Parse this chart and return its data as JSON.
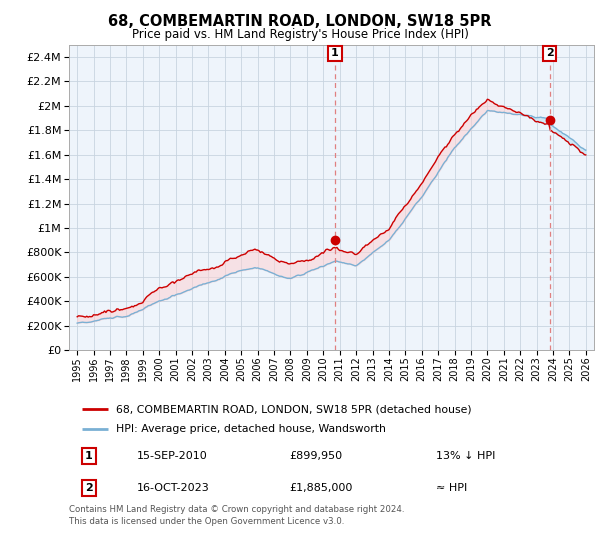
{
  "title": "68, COMBEMARTIN ROAD, LONDON, SW18 5PR",
  "subtitle": "Price paid vs. HM Land Registry's House Price Index (HPI)",
  "legend_line1": "68, COMBEMARTIN ROAD, LONDON, SW18 5PR (detached house)",
  "legend_line2": "HPI: Average price, detached house, Wandsworth",
  "annotation1_label": "1",
  "annotation1_date": "15-SEP-2010",
  "annotation1_price": "£899,950",
  "annotation1_hpi": "13% ↓ HPI",
  "annotation2_label": "2",
  "annotation2_date": "16-OCT-2023",
  "annotation2_price": "£1,885,000",
  "annotation2_hpi": "≈ HPI",
  "footer": "Contains HM Land Registry data © Crown copyright and database right 2024.\nThis data is licensed under the Open Government Licence v3.0.",
  "hpi_color": "#7ab0d4",
  "hpi_fill_color": "#d0e8f5",
  "price_color": "#cc0000",
  "annotation_vline_color": "#e08080",
  "ylim_min": 0,
  "ylim_max": 2500000,
  "x_start_year": 1995,
  "x_end_year": 2026,
  "sale1_year": 2010.71,
  "sale1_price": 899950,
  "sale2_year": 2023.79,
  "sale2_price": 1885000,
  "bg_color": "#eef4fb",
  "grid_color": "#c8d4e0"
}
